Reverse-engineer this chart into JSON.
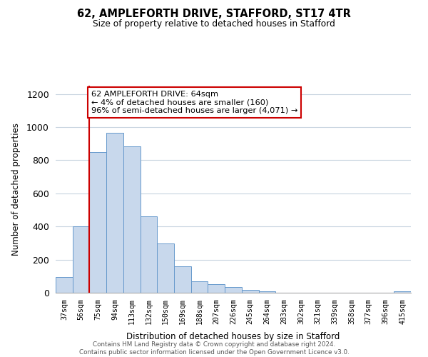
{
  "title": "62, AMPLEFORTH DRIVE, STAFFORD, ST17 4TR",
  "subtitle": "Size of property relative to detached houses in Stafford",
  "xlabel": "Distribution of detached houses by size in Stafford",
  "ylabel": "Number of detached properties",
  "bar_labels": [
    "37sqm",
    "56sqm",
    "75sqm",
    "94sqm",
    "113sqm",
    "132sqm",
    "150sqm",
    "169sqm",
    "188sqm",
    "207sqm",
    "226sqm",
    "245sqm",
    "264sqm",
    "283sqm",
    "302sqm",
    "321sqm",
    "339sqm",
    "358sqm",
    "377sqm",
    "396sqm",
    "415sqm"
  ],
  "bar_values": [
    95,
    400,
    848,
    965,
    883,
    460,
    297,
    158,
    70,
    52,
    35,
    18,
    10,
    0,
    0,
    0,
    0,
    0,
    0,
    0,
    10
  ],
  "bar_color": "#c8d8ec",
  "bar_edge_color": "#6699cc",
  "annotation_line1": "62 AMPLEFORTH DRIVE: 64sqm",
  "annotation_line2": "← 4% of detached houses are smaller (160)",
  "annotation_line3": "96% of semi-detached houses are larger (4,071) →",
  "red_line_bar_index": 1,
  "ylim": [
    0,
    1250
  ],
  "yticks": [
    0,
    200,
    400,
    600,
    800,
    1000,
    1200
  ],
  "footer_line1": "Contains HM Land Registry data © Crown copyright and database right 2024.",
  "footer_line2": "Contains public sector information licensed under the Open Government Licence v3.0.",
  "background_color": "#ffffff",
  "grid_color": "#c8d4e0"
}
